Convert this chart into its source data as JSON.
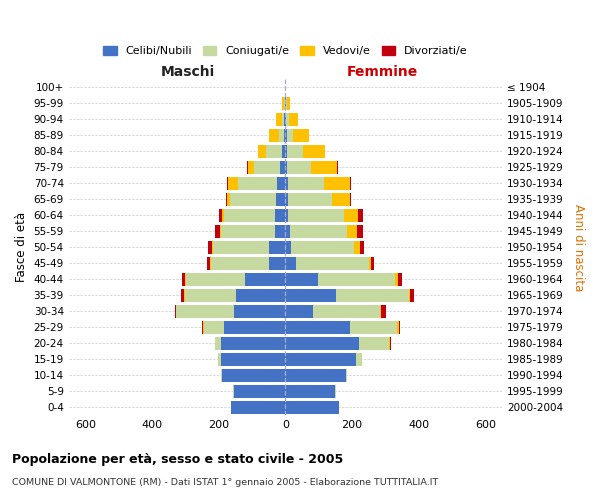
{
  "age_groups": [
    "0-4",
    "5-9",
    "10-14",
    "15-19",
    "20-24",
    "25-29",
    "30-34",
    "35-39",
    "40-44",
    "45-49",
    "50-54",
    "55-59",
    "60-64",
    "65-69",
    "70-74",
    "75-79",
    "80-84",
    "85-89",
    "90-94",
    "95-99",
    "100+"
  ],
  "birth_years": [
    "2000-2004",
    "1995-1999",
    "1990-1994",
    "1985-1989",
    "1980-1984",
    "1975-1979",
    "1970-1974",
    "1965-1969",
    "1960-1964",
    "1955-1959",
    "1950-1954",
    "1945-1949",
    "1940-1944",
    "1935-1939",
    "1930-1934",
    "1925-1929",
    "1920-1924",
    "1915-1919",
    "1910-1914",
    "1905-1909",
    "≤ 1904"
  ],
  "maschi": {
    "celibi": [
      163,
      153,
      190,
      193,
      192,
      185,
      155,
      148,
      120,
      50,
      48,
      30,
      30,
      28,
      25,
      15,
      10,
      5,
      3,
      2,
      1
    ],
    "coniugati": [
      0,
      4,
      4,
      8,
      18,
      58,
      172,
      152,
      178,
      173,
      168,
      163,
      153,
      138,
      118,
      78,
      48,
      15,
      8,
      3,
      0
    ],
    "vedovi": [
      0,
      0,
      0,
      0,
      0,
      4,
      0,
      4,
      4,
      4,
      4,
      4,
      8,
      8,
      28,
      18,
      23,
      28,
      18,
      5,
      0
    ],
    "divorziati": [
      0,
      0,
      0,
      0,
      0,
      4,
      4,
      8,
      8,
      8,
      13,
      13,
      8,
      4,
      4,
      4,
      0,
      0,
      0,
      0,
      0
    ]
  },
  "femmine": {
    "nubili": [
      162,
      148,
      182,
      212,
      222,
      193,
      82,
      152,
      98,
      32,
      18,
      13,
      8,
      8,
      8,
      4,
      4,
      4,
      3,
      2,
      0
    ],
    "coniugate": [
      0,
      4,
      4,
      18,
      88,
      143,
      202,
      218,
      232,
      218,
      188,
      173,
      168,
      132,
      108,
      73,
      48,
      18,
      8,
      4,
      0
    ],
    "vedove": [
      0,
      0,
      0,
      0,
      4,
      4,
      4,
      4,
      8,
      8,
      18,
      28,
      43,
      53,
      78,
      78,
      68,
      48,
      28,
      8,
      0
    ],
    "divorziate": [
      0,
      0,
      0,
      0,
      4,
      4,
      13,
      13,
      13,
      8,
      13,
      18,
      13,
      4,
      4,
      4,
      0,
      0,
      0,
      0,
      0
    ]
  },
  "color_celibe": "#4472c4",
  "color_coniugato": "#c5d9a0",
  "color_vedovo": "#ffc000",
  "color_divorziato": "#c0000c",
  "title": "Popolazione per età, sesso e stato civile - 2005",
  "subtitle": "COMUNE DI VALMONTONE (RM) - Dati ISTAT 1° gennaio 2005 - Elaborazione TUTTITALIA.IT",
  "label_maschi": "Maschi",
  "label_femmine": "Femmine",
  "ylabel_left": "Fasce di età",
  "ylabel_right": "Anni di nascita",
  "xlim": 650,
  "xticks": [
    -600,
    -400,
    -200,
    0,
    200,
    400,
    600
  ],
  "legend_labels": [
    "Celibi/Nubili",
    "Coniugati/e",
    "Vedovi/e",
    "Divorziati/e"
  ],
  "background_color": "#ffffff",
  "grid_color": "#cccccc",
  "femmine_label_color": "#cc0000",
  "right_axis_color": "#e07000"
}
